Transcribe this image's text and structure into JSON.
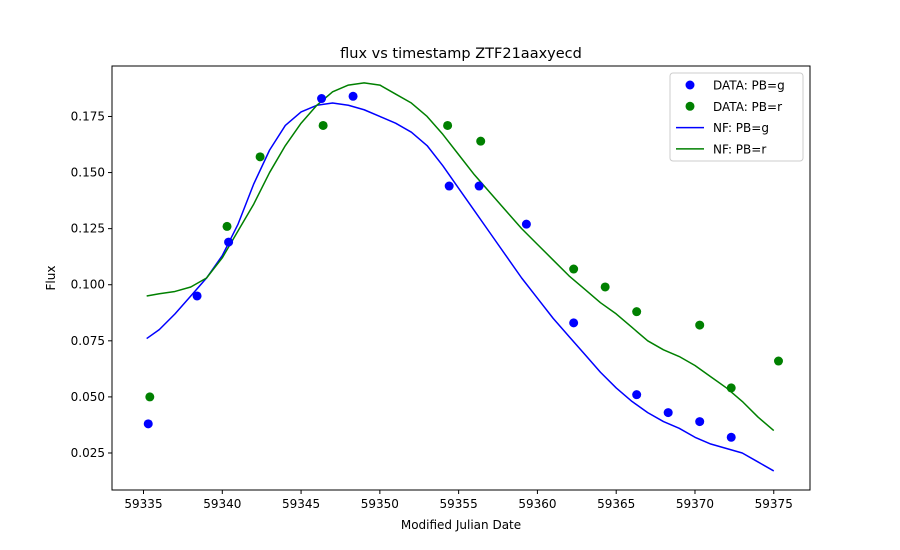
{
  "chart_data": {
    "type": "scatter",
    "title": "flux vs timestamp ZTF21aaxyecd",
    "xlabel": "Modified Julian Date",
    "ylabel": "Flux",
    "xlim": [
      59333.0,
      59377.3
    ],
    "ylim": [
      0.0085,
      0.1975
    ],
    "xticks": [
      59335,
      59340,
      59345,
      59350,
      59355,
      59360,
      59365,
      59370,
      59375
    ],
    "yticks": [
      0.025,
      0.05,
      0.075,
      0.1,
      0.125,
      0.15,
      0.175
    ],
    "legend": {
      "location": "top-right",
      "entries": [
        "DATA: PB=g",
        "DATA: PB=r",
        "NF: PB=g",
        "NF: PB=r"
      ]
    },
    "colors": {
      "g": "#0000ff",
      "r": "#008000"
    },
    "series": [
      {
        "name": "DATA: PB=g",
        "kind": "scatter",
        "color": "#0000ff",
        "x": [
          59335.3,
          59338.4,
          59340.4,
          59346.3,
          59348.3,
          59354.4,
          59356.3,
          59359.3,
          59362.3,
          59366.3,
          59368.3,
          59370.3,
          59372.3
        ],
        "y": [
          0.038,
          0.095,
          0.119,
          0.183,
          0.184,
          0.144,
          0.144,
          0.127,
          0.083,
          0.051,
          0.043,
          0.039,
          0.032
        ]
      },
      {
        "name": "DATA: PB=r",
        "kind": "scatter",
        "color": "#008000",
        "x": [
          59335.4,
          59340.3,
          59342.4,
          59346.4,
          59354.3,
          59356.4,
          59362.3,
          59364.3,
          59366.3,
          59370.3,
          59372.3,
          59375.3
        ],
        "y": [
          0.05,
          0.126,
          0.157,
          0.171,
          0.171,
          0.164,
          0.107,
          0.099,
          0.088,
          0.082,
          0.054,
          0.066
        ]
      },
      {
        "name": "NF: PB=g",
        "kind": "line",
        "color": "#0000ff",
        "x": [
          59335.2,
          59336.0,
          59337.0,
          59338.0,
          59339.0,
          59340.0,
          59341.0,
          59342.0,
          59343.0,
          59344.0,
          59345.0,
          59346.0,
          59347.0,
          59348.0,
          59349.0,
          59350.0,
          59351.0,
          59352.0,
          59353.0,
          59354.0,
          59355.0,
          59356.0,
          59357.0,
          59358.0,
          59359.0,
          59360.0,
          59361.0,
          59362.0,
          59363.0,
          59364.0,
          59365.0,
          59366.0,
          59367.0,
          59368.0,
          59369.0,
          59370.0,
          59371.0,
          59372.0,
          59373.0,
          59374.0,
          59375.0
        ],
        "y": [
          0.076,
          0.08,
          0.087,
          0.095,
          0.103,
          0.113,
          0.127,
          0.145,
          0.16,
          0.171,
          0.177,
          0.18,
          0.181,
          0.18,
          0.178,
          0.175,
          0.172,
          0.168,
          0.162,
          0.153,
          0.143,
          0.133,
          0.123,
          0.113,
          0.103,
          0.094,
          0.085,
          0.077,
          0.069,
          0.061,
          0.054,
          0.048,
          0.043,
          0.039,
          0.036,
          0.032,
          0.029,
          0.027,
          0.025,
          0.021,
          0.017
        ]
      },
      {
        "name": "NF: PB=r",
        "kind": "line",
        "color": "#008000",
        "x": [
          59335.2,
          59336.0,
          59337.0,
          59338.0,
          59339.0,
          59340.0,
          59341.0,
          59342.0,
          59343.0,
          59344.0,
          59345.0,
          59346.0,
          59347.0,
          59348.0,
          59349.0,
          59350.0,
          59351.0,
          59352.0,
          59353.0,
          59354.0,
          59355.0,
          59356.0,
          59357.0,
          59358.0,
          59359.0,
          59360.0,
          59361.0,
          59362.0,
          59363.0,
          59364.0,
          59365.0,
          59366.0,
          59367.0,
          59368.0,
          59369.0,
          59370.0,
          59371.0,
          59372.0,
          59373.0,
          59374.0,
          59375.0
        ],
        "y": [
          0.095,
          0.096,
          0.097,
          0.099,
          0.103,
          0.112,
          0.124,
          0.136,
          0.15,
          0.162,
          0.172,
          0.18,
          0.186,
          0.189,
          0.19,
          0.189,
          0.185,
          0.181,
          0.175,
          0.167,
          0.158,
          0.149,
          0.141,
          0.133,
          0.125,
          0.118,
          0.111,
          0.104,
          0.098,
          0.092,
          0.087,
          0.081,
          0.075,
          0.071,
          0.068,
          0.064,
          0.059,
          0.054,
          0.048,
          0.041,
          0.035
        ]
      }
    ]
  }
}
